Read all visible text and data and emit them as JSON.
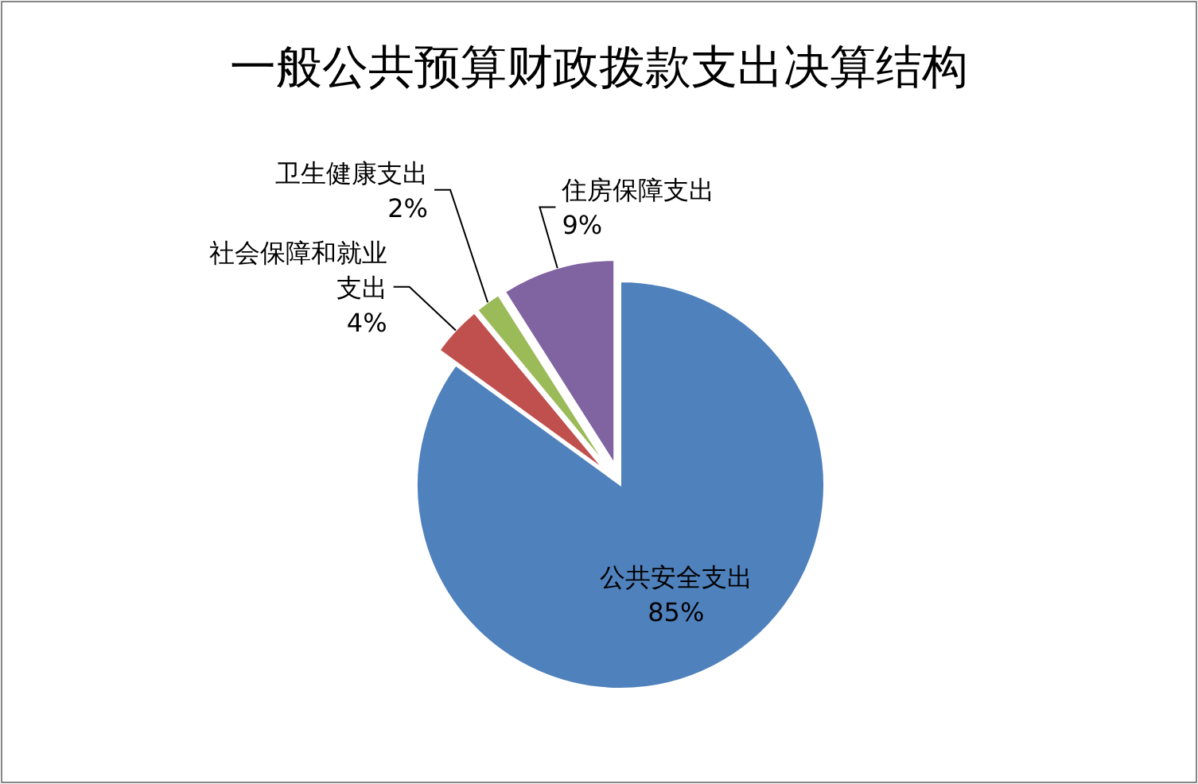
{
  "chart_data": {
    "type": "pie",
    "title": "一般公共预算财政拨款支出决算结构",
    "categories": [
      "公共安全支出",
      "社会保障和就业支出",
      "卫生健康支出",
      "住房保障支出"
    ],
    "values": [
      85,
      4,
      2,
      9
    ],
    "value_labels": [
      "85%",
      "4%",
      "2%",
      "9%"
    ],
    "colors": [
      "#4f81bd",
      "#c0504d",
      "#9bbb59",
      "#8064a2"
    ]
  }
}
